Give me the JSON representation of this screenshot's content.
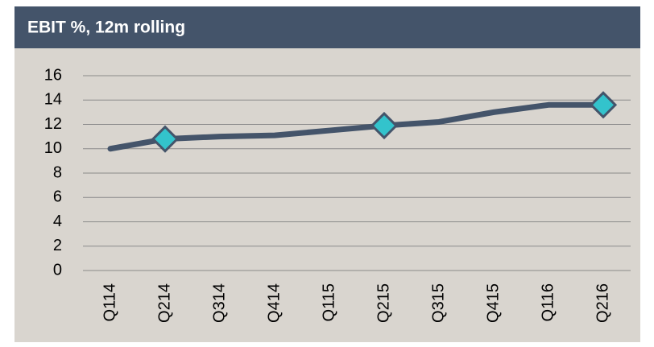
{
  "chart_data": {
    "type": "line",
    "title": "EBIT %, 12m rolling",
    "categories": [
      "Q114",
      "Q214",
      "Q314",
      "Q414",
      "Q115",
      "Q215",
      "Q315",
      "Q415",
      "Q116",
      "Q216"
    ],
    "series": [
      {
        "name": "EBIT %",
        "color": "#44546a",
        "marker_color": "#33c3cc",
        "values": [
          10.0,
          10.8,
          11.0,
          11.1,
          11.5,
          11.9,
          12.2,
          13.0,
          13.6,
          13.6
        ],
        "marker_indices": [
          1,
          5,
          9
        ]
      }
    ],
    "ylim": [
      0,
      16
    ],
    "yticks": [
      0,
      2,
      4,
      6,
      8,
      10,
      12,
      14,
      16
    ],
    "grid": true
  }
}
